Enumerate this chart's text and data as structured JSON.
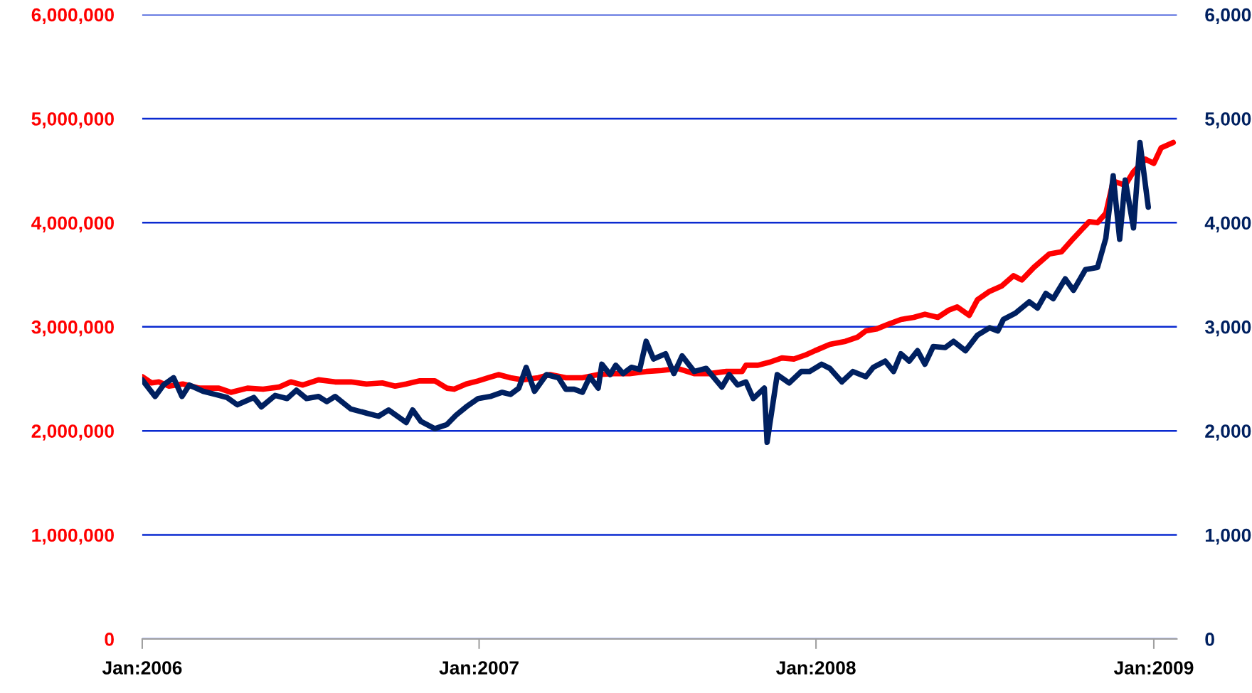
{
  "chart_data": {
    "type": "line",
    "xlim": [
      "2006-01-01",
      "2009-01-26"
    ],
    "xticks": [
      {
        "value": "2006-01-01",
        "label": "Jan:2006"
      },
      {
        "value": "2007-01-01",
        "label": "Jan:2007"
      },
      {
        "value": "2008-01-01",
        "label": "Jan:2008"
      },
      {
        "value": "2009-01-01",
        "label": "Jan:2009"
      }
    ],
    "ylim": [
      0,
      6000000
    ],
    "yticks": [
      0,
      {
        "value": 1000000,
        "label": "1,000,000"
      },
      {
        "value": 2000000,
        "label": "2,000,000"
      },
      {
        "value": 3000000,
        "label": "3,000,000"
      },
      {
        "value": 4000000,
        "label": "4,000,000"
      },
      {
        "value": 5000000,
        "label": "5,000,000"
      },
      {
        "value": 6000000,
        "label": "6,000,000"
      }
    ],
    "y2lim": [
      0,
      6000
    ],
    "y2ticks": [
      0,
      {
        "value": 1000,
        "label": "1,000"
      },
      {
        "value": 2000,
        "label": "2,000"
      },
      {
        "value": 3000,
        "label": "3,000"
      },
      {
        "value": 4000,
        "label": "4,000"
      },
      {
        "value": 5000,
        "label": "5,000"
      },
      {
        "value": 6000,
        "label": "6,000"
      }
    ],
    "grid": "y",
    "series": [
      {
        "color": "#002060",
        "axis": "y2",
        "x": [
          "2006-01-01",
          "2006-01-15",
          "2006-01-24",
          "2006-02-04",
          "2006-02-13",
          "2006-02-21",
          "2006-03-08",
          "2006-03-21",
          "2006-04-03",
          "2006-04-14",
          "2006-05-02",
          "2006-05-10",
          "2006-05-25",
          "2006-06-07",
          "2006-06-17",
          "2006-06-28",
          "2006-07-11",
          "2006-07-20",
          "2006-07-29",
          "2006-08-15",
          "2006-09-01",
          "2006-09-14",
          "2006-09-25",
          "2006-10-14",
          "2006-10-21",
          "2006-10-30",
          "2006-11-14",
          "2006-11-27",
          "2006-12-07",
          "2006-12-18",
          "2006-12-31",
          "2007-01-13",
          "2007-01-26",
          "2007-02-04",
          "2007-02-13",
          "2007-02-21",
          "2007-03-02",
          "2007-03-15",
          "2007-03-28",
          "2007-04-05",
          "2007-04-14",
          "2007-04-23",
          "2007-05-01",
          "2007-05-10",
          "2007-05-14",
          "2007-05-23",
          "2007-05-29",
          "2007-06-06",
          "2007-06-15",
          "2007-06-24",
          "2007-07-01",
          "2007-07-09",
          "2007-07-22",
          "2007-07-31",
          "2007-08-09",
          "2007-08-22",
          "2007-09-04",
          "2007-09-21",
          "2007-09-29",
          "2007-10-08",
          "2007-10-17",
          "2007-10-25",
          "2007-11-06",
          "2007-11-09",
          "2007-11-20",
          "2007-12-03",
          "2007-12-16",
          "2007-12-25",
          "2008-01-07",
          "2008-01-16",
          "2008-01-29",
          "2008-02-10",
          "2008-02-24",
          "2008-03-03",
          "2008-03-16",
          "2008-03-25",
          "2008-04-02",
          "2008-04-11",
          "2008-04-20",
          "2008-04-28",
          "2008-05-07",
          "2008-05-20",
          "2008-05-29",
          "2008-06-11",
          "2008-06-24",
          "2008-07-07",
          "2008-07-16",
          "2008-07-22",
          "2008-08-04",
          "2008-08-19",
          "2008-08-28",
          "2008-09-06",
          "2008-09-14",
          "2008-09-27",
          "2008-10-06",
          "2008-10-19",
          "2008-11-01",
          "2008-11-10",
          "2008-11-18",
          "2008-11-25",
          "2008-12-01",
          "2008-12-10",
          "2008-12-17",
          "2008-12-26"
        ],
        "values": [
          2490,
          2330,
          2440,
          2510,
          2330,
          2440,
          2380,
          2350,
          2320,
          2250,
          2320,
          2230,
          2340,
          2310,
          2390,
          2310,
          2330,
          2280,
          2330,
          2210,
          2170,
          2140,
          2200,
          2080,
          2200,
          2090,
          2020,
          2060,
          2150,
          2230,
          2310,
          2330,
          2370,
          2350,
          2410,
          2610,
          2380,
          2540,
          2510,
          2400,
          2400,
          2370,
          2520,
          2410,
          2640,
          2540,
          2630,
          2550,
          2610,
          2590,
          2860,
          2690,
          2740,
          2550,
          2720,
          2570,
          2600,
          2420,
          2540,
          2440,
          2470,
          2310,
          2410,
          1890,
          2540,
          2460,
          2570,
          2570,
          2640,
          2600,
          2470,
          2570,
          2520,
          2610,
          2670,
          2570,
          2740,
          2670,
          2770,
          2640,
          2810,
          2800,
          2860,
          2770,
          2920,
          2990,
          2960,
          3070,
          3130,
          3240,
          3180,
          3320,
          3270,
          3460,
          3350,
          3550,
          3570,
          3850,
          4450,
          3840,
          4410,
          3950,
          4770,
          4150
        ]
      },
      {
        "color": "#ff0000",
        "x": [
          "2006-01-01",
          "2006-01-11",
          "2006-01-19",
          "2006-01-30",
          "2006-02-14",
          "2006-03-04",
          "2006-03-25",
          "2006-04-07",
          "2006-04-25",
          "2006-05-12",
          "2006-05-29",
          "2006-06-11",
          "2006-06-24",
          "2006-07-11",
          "2006-07-29",
          "2006-08-15",
          "2006-09-01",
          "2006-09-18",
          "2006-10-02",
          "2006-10-14",
          "2006-10-28",
          "2006-11-14",
          "2006-11-27",
          "2006-12-05",
          "2006-12-18",
          "2006-12-31",
          "2007-01-11",
          "2007-01-22",
          "2007-02-04",
          "2007-02-17",
          "2007-03-06",
          "2007-03-19",
          "2007-04-05",
          "2007-04-23",
          "2007-05-10",
          "2007-05-27",
          "2007-06-13",
          "2007-07-01",
          "2007-07-18",
          "2007-08-04",
          "2007-08-22",
          "2007-09-08",
          "2007-09-25",
          "2007-10-13",
          "2007-10-17",
          "2007-10-30",
          "2007-11-12",
          "2007-11-25",
          "2007-12-08",
          "2007-12-21",
          "2007-12-31",
          "2008-01-16",
          "2008-02-02",
          "2008-02-15",
          "2008-02-24",
          "2008-03-07",
          "2008-03-21",
          "2008-04-02",
          "2008-04-16",
          "2008-04-28",
          "2008-05-12",
          "2008-05-24",
          "2008-06-02",
          "2008-06-15",
          "2008-06-24",
          "2008-07-07",
          "2008-07-20",
          "2008-08-02",
          "2008-08-11",
          "2008-08-24",
          "2008-09-10",
          "2008-09-23",
          "2008-10-06",
          "2008-10-23",
          "2008-11-01",
          "2008-11-10",
          "2008-11-18",
          "2008-12-01",
          "2008-12-10",
          "2008-12-23",
          "2009-01-01",
          "2009-01-09",
          "2009-01-22"
        ],
        "values": [
          2520000,
          2460000,
          2470000,
          2430000,
          2450000,
          2410000,
          2410000,
          2370000,
          2410000,
          2400000,
          2420000,
          2470000,
          2440000,
          2490000,
          2470000,
          2470000,
          2450000,
          2460000,
          2430000,
          2450000,
          2480000,
          2480000,
          2410000,
          2400000,
          2450000,
          2480000,
          2510000,
          2540000,
          2510000,
          2490000,
          2510000,
          2540000,
          2510000,
          2510000,
          2540000,
          2550000,
          2550000,
          2570000,
          2580000,
          2600000,
          2550000,
          2550000,
          2570000,
          2570000,
          2630000,
          2630000,
          2660000,
          2700000,
          2690000,
          2730000,
          2770000,
          2830000,
          2860000,
          2900000,
          2960000,
          2980000,
          3030000,
          3070000,
          3090000,
          3120000,
          3090000,
          3160000,
          3190000,
          3110000,
          3260000,
          3340000,
          3390000,
          3490000,
          3450000,
          3570000,
          3700000,
          3720000,
          3850000,
          4010000,
          4000000,
          4090000,
          4400000,
          4360000,
          4490000,
          4610000,
          4570000,
          4720000,
          4770000
        ]
      }
    ]
  }
}
